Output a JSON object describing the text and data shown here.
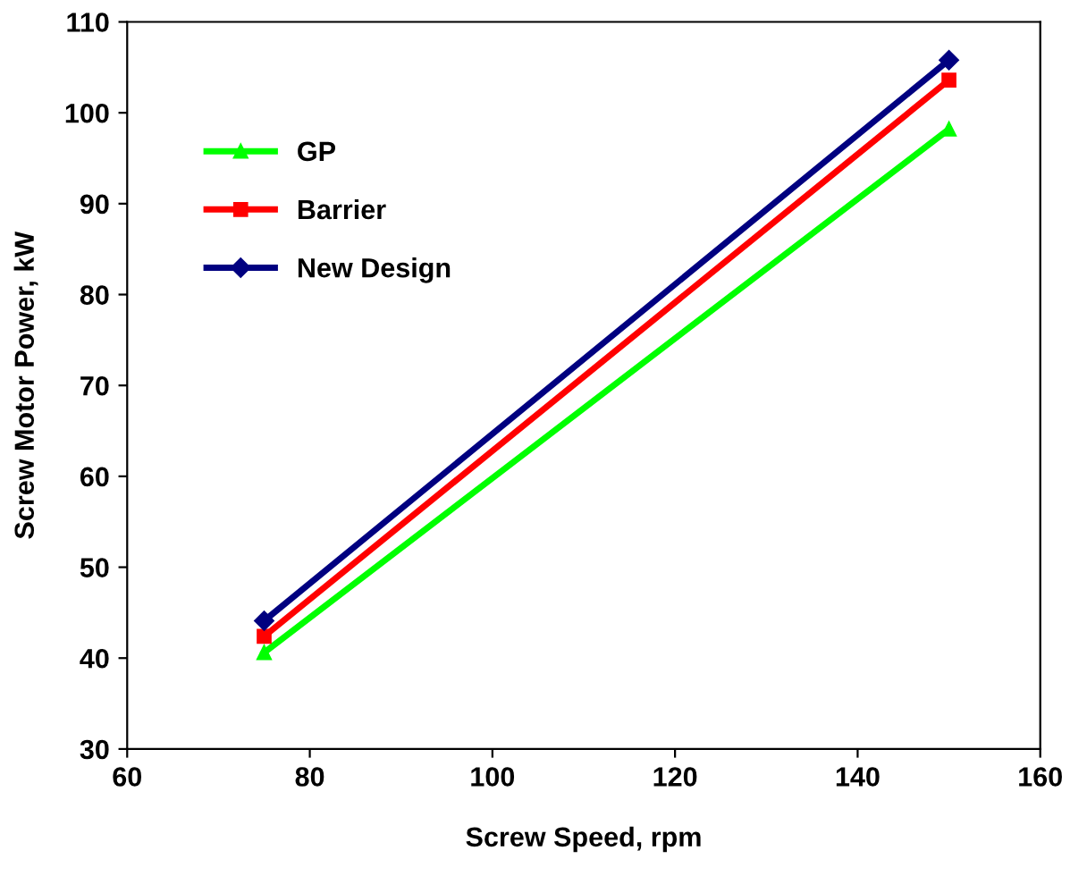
{
  "chart_data": {
    "type": "line",
    "xlabel": "Screw Speed, rpm",
    "ylabel": "Screw Motor Power, kW",
    "x": [
      75,
      150
    ],
    "series": [
      {
        "name": "GP",
        "color": "#00ff00",
        "marker": "triangle",
        "values": [
          40.6,
          98.2
        ]
      },
      {
        "name": "Barrier",
        "color": "#ff0000",
        "marker": "square",
        "values": [
          42.4,
          103.6
        ]
      },
      {
        "name": "New Design",
        "color": "#000080",
        "marker": "diamond",
        "values": [
          44.1,
          105.8
        ]
      }
    ],
    "xlim": [
      60,
      160
    ],
    "xticks": [
      60,
      80,
      100,
      120,
      140,
      160
    ],
    "ylim": [
      30,
      110
    ],
    "yticks": [
      30,
      40,
      50,
      60,
      70,
      80,
      90,
      100,
      110
    ],
    "grid": false,
    "legend": "top left"
  }
}
